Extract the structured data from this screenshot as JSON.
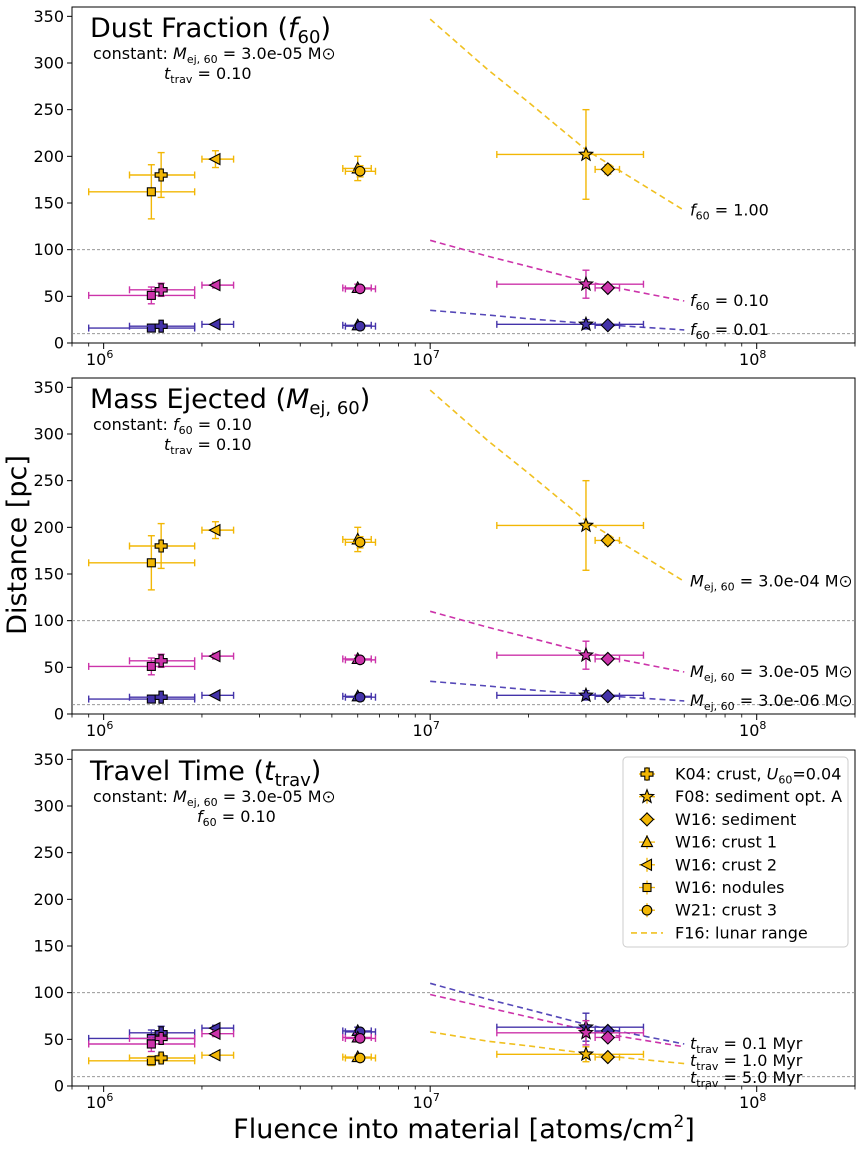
{
  "figure": {
    "ylabel": "Distance [pc]",
    "xlabel_main": "Fluence into material [atoms/cm",
    "xlabel_sup": "2",
    "xlabel_end": "]"
  },
  "colors": {
    "gold": "#f2b705",
    "gold_line": "#f0c020",
    "magenta": "#cc33aa",
    "purple": "#4433aa",
    "purple_line": "#5548b8",
    "guide": "#888888"
  },
  "shared_points": {
    "K04": {
      "x": 1500000.0,
      "xerr": [
        1200000.0,
        1900000.0
      ]
    },
    "F08": {
      "x": 30000000.0,
      "xerr": [
        16000000.0,
        45000000.0
      ]
    },
    "W16s": {
      "x": 35000000.0,
      "xerr": [
        32000000.0,
        38000000.0
      ]
    },
    "W16c1": {
      "x": 6000000.0,
      "xerr": [
        5400000.0,
        6600000.0
      ]
    },
    "W16c2": {
      "x": 2200000.0,
      "xerr": [
        2000000.0,
        2500000.0
      ]
    },
    "W16n": {
      "x": 1400000.0,
      "xerr": [
        900000.0,
        1900000.0
      ]
    },
    "W21": {
      "x": 6100000.0,
      "xerr": [
        5500000.0,
        6800000.0
      ]
    }
  },
  "legend": {
    "items": [
      {
        "marker": "plus",
        "label_main": "K04: crust, ",
        "label_it": "U",
        "label_sub": "60",
        "label_end": "=0.04"
      },
      {
        "marker": "star",
        "label_main": "F08: sediment opt. A"
      },
      {
        "marker": "diamond",
        "label_main": "W16: sediment"
      },
      {
        "marker": "triangle-up",
        "label_main": "W16: crust 1"
      },
      {
        "marker": "triangle-left",
        "label_main": "W16: crust 2"
      },
      {
        "marker": "square",
        "label_main": "W16: nodules"
      },
      {
        "marker": "circle",
        "label_main": "W21: crust 3"
      },
      {
        "marker": "dashed-line",
        "label_main": "F16: lunar range"
      }
    ]
  },
  "chart_data": [
    {
      "type": "scatter",
      "title_main": "Dust Fraction (",
      "title_it": "f",
      "title_sub": "60",
      "title_end": ")",
      "constants": [
        {
          "prefix": "constant: ",
          "sym": "M",
          "sub": "ej, 60",
          "rest": " =  3.0e-05 M",
          "sun": true
        },
        {
          "prefix": "",
          "sym": "t",
          "sub": "trav",
          "rest": " =  0.10",
          "sun": false
        }
      ],
      "xscale": "log",
      "xlim": [
        800000.0,
        200000000.0
      ],
      "ylim": [
        0,
        360
      ],
      "xticks": [
        "10^6",
        "10^7",
        "10^8"
      ],
      "yticks": [
        0,
        50,
        100,
        150,
        200,
        250,
        300,
        350
      ],
      "hlines": [
        100,
        10
      ],
      "series": [
        {
          "color": "gold",
          "curve": [
            [
              10000000.0,
              347
            ],
            [
              15000000.0,
              293
            ],
            [
              20000000.0,
              258
            ],
            [
              30000000.0,
              207
            ],
            [
              40000000.0,
              180
            ],
            [
              60000000.0,
              142
            ]
          ],
          "label": {
            "sym": "f",
            "sub": "60",
            "rest": " =  1.00"
          },
          "points": {
            "K04": [
              180,
              24
            ],
            "F08": [
              202,
              48
            ],
            "W16s": [
              186,
              5
            ],
            "W16c1": [
              187,
              13
            ],
            "W16c2": [
              197,
              9
            ],
            "W16n": [
              162,
              29
            ],
            "W21": [
              184,
              6
            ]
          }
        },
        {
          "color": "magenta",
          "curve": [
            [
              10000000.0,
              110
            ],
            [
              15000000.0,
              93
            ],
            [
              20000000.0,
              82
            ],
            [
              30000000.0,
              66
            ],
            [
              40000000.0,
              57
            ],
            [
              60000000.0,
              45
            ]
          ],
          "label": {
            "sym": "f",
            "sub": "60",
            "rest": " =  0.10"
          },
          "points": {
            "K04": [
              57,
              7
            ],
            "F08": [
              63,
              15
            ],
            "W16s": [
              59,
              2
            ],
            "W16c1": [
              59,
              4
            ],
            "W16c2": [
              62,
              3
            ],
            "W16n": [
              51,
              9
            ],
            "W21": [
              58,
              2
            ]
          }
        },
        {
          "color": "purple",
          "curve": [
            [
              10000000.0,
              35
            ],
            [
              15000000.0,
              30
            ],
            [
              20000000.0,
              26
            ],
            [
              30000000.0,
              21
            ],
            [
              40000000.0,
              18
            ],
            [
              60000000.0,
              14
            ]
          ],
          "label": {
            "sym": "f",
            "sub": "60",
            "rest": " =  0.01"
          },
          "points": {
            "K04": [
              18,
              2
            ],
            "F08": [
              20,
              5
            ],
            "W16s": [
              19,
              1
            ],
            "W16c1": [
              19,
              1
            ],
            "W16c2": [
              20,
              1
            ],
            "W16n": [
              16,
              3
            ],
            "W21": [
              18,
              1
            ]
          }
        }
      ]
    },
    {
      "type": "scatter",
      "title_main": "Mass Ejected (",
      "title_it": "M",
      "title_sub": "ej, 60",
      "title_end": ")",
      "constants": [
        {
          "prefix": "constant: ",
          "sym": "f",
          "sub": "60",
          "rest": " =  0.10",
          "sun": false
        },
        {
          "prefix": "",
          "sym": "t",
          "sub": "trav",
          "rest": " =  0.10",
          "sun": false
        }
      ],
      "xscale": "log",
      "xlim": [
        800000.0,
        200000000.0
      ],
      "ylim": [
        0,
        360
      ],
      "xticks": [
        "10^6",
        "10^7",
        "10^8"
      ],
      "yticks": [
        0,
        50,
        100,
        150,
        200,
        250,
        300,
        350
      ],
      "hlines": [
        100,
        10
      ],
      "series": [
        {
          "color": "gold",
          "curve": [
            [
              10000000.0,
              347
            ],
            [
              15000000.0,
              293
            ],
            [
              20000000.0,
              258
            ],
            [
              30000000.0,
              207
            ],
            [
              40000000.0,
              180
            ],
            [
              60000000.0,
              142
            ]
          ],
          "label": {
            "sym": "M",
            "sub": "ej, 60",
            "rest": " =  3.0e-04 M",
            "sun": true
          },
          "points": {
            "K04": [
              180,
              24
            ],
            "F08": [
              202,
              48
            ],
            "W16s": [
              186,
              5
            ],
            "W16c1": [
              187,
              13
            ],
            "W16c2": [
              197,
              9
            ],
            "W16n": [
              162,
              29
            ],
            "W21": [
              184,
              6
            ]
          }
        },
        {
          "color": "magenta",
          "curve": [
            [
              10000000.0,
              110
            ],
            [
              15000000.0,
              93
            ],
            [
              20000000.0,
              82
            ],
            [
              30000000.0,
              66
            ],
            [
              40000000.0,
              57
            ],
            [
              60000000.0,
              45
            ]
          ],
          "label": {
            "sym": "M",
            "sub": "ej, 60",
            "rest": " =  3.0e-05 M",
            "sun": true
          },
          "points": {
            "K04": [
              57,
              7
            ],
            "F08": [
              63,
              15
            ],
            "W16s": [
              59,
              2
            ],
            "W16c1": [
              59,
              4
            ],
            "W16c2": [
              62,
              3
            ],
            "W16n": [
              51,
              9
            ],
            "W21": [
              58,
              2
            ]
          }
        },
        {
          "color": "purple",
          "curve": [
            [
              10000000.0,
              35
            ],
            [
              15000000.0,
              30
            ],
            [
              20000000.0,
              26
            ],
            [
              30000000.0,
              21
            ],
            [
              40000000.0,
              18
            ],
            [
              60000000.0,
              14
            ]
          ],
          "label": {
            "sym": "M",
            "sub": "ej, 60",
            "rest": " =  3.0e-06 M",
            "sun": true
          },
          "points": {
            "K04": [
              18,
              2
            ],
            "F08": [
              20,
              5
            ],
            "W16s": [
              19,
              1
            ],
            "W16c1": [
              19,
              1
            ],
            "W16c2": [
              20,
              1
            ],
            "W16n": [
              16,
              3
            ],
            "W21": [
              18,
              1
            ]
          }
        }
      ]
    },
    {
      "type": "scatter",
      "title_main": "Travel Time (",
      "title_it": "t",
      "title_sub": "trav",
      "title_end": ")",
      "constants": [
        {
          "prefix": "constant: ",
          "sym": "M",
          "sub": "ej, 60",
          "rest": " =  3.0e-05 M",
          "sun": true
        },
        {
          "prefix": "",
          "sym": "f",
          "sub": "60",
          "rest": " =  0.10",
          "sun": false
        }
      ],
      "xscale": "log",
      "xlim": [
        800000.0,
        200000000.0
      ],
      "ylim": [
        0,
        360
      ],
      "xticks": [
        "10^6",
        "10^7",
        "10^8"
      ],
      "yticks": [
        0,
        50,
        100,
        150,
        200,
        250,
        300,
        350
      ],
      "hlines": [
        100,
        10
      ],
      "legend": "top-right",
      "series": [
        {
          "color": "purple",
          "curve": [
            [
              10000000.0,
              110
            ],
            [
              15000000.0,
              93
            ],
            [
              20000000.0,
              82
            ],
            [
              30000000.0,
              66
            ],
            [
              40000000.0,
              57
            ],
            [
              60000000.0,
              45
            ]
          ],
          "label": {
            "sym": "t",
            "sub": "trav",
            "rest": " =  0.1 Myr"
          },
          "points": {
            "K04": [
              57,
              7
            ],
            "F08": [
              63,
              15
            ],
            "W16s": [
              59,
              2
            ],
            "W16c1": [
              59,
              4
            ],
            "W16c2": [
              62,
              3
            ],
            "W16n": [
              51,
              9
            ],
            "W21": [
              58,
              2
            ]
          }
        },
        {
          "color": "magenta",
          "curve": [
            [
              10000000.0,
              98
            ],
            [
              15000000.0,
              84
            ],
            [
              20000000.0,
              74
            ],
            [
              30000000.0,
              60
            ],
            [
              40000000.0,
              52
            ],
            [
              60000000.0,
              42
            ]
          ],
          "label": {
            "sym": "t",
            "sub": "trav",
            "rest": " =  1.0 Myr"
          },
          "points": {
            "K04": [
              51,
              6
            ],
            "F08": [
              57,
              13
            ],
            "W16s": [
              52,
              2
            ],
            "W16c1": [
              52,
              4
            ],
            "W16c2": [
              56,
              3
            ],
            "W16n": [
              45,
              8
            ],
            "W21": [
              51,
              2
            ]
          }
        },
        {
          "color": "gold",
          "curve": [
            [
              10000000.0,
              58
            ],
            [
              15000000.0,
              48
            ],
            [
              20000000.0,
              43
            ],
            [
              30000000.0,
              35
            ],
            [
              40000000.0,
              30
            ],
            [
              60000000.0,
              24
            ]
          ],
          "label": {
            "sym": "t",
            "sub": "trav",
            "rest": " =  5.0 Myr"
          },
          "points": {
            "K04": [
              30,
              4
            ],
            "F08": [
              34,
              8
            ],
            "W16s": [
              31,
              1
            ],
            "W16c1": [
              31,
              2
            ],
            "W16c2": [
              33,
              2
            ],
            "W16n": [
              27,
              5
            ],
            "W21": [
              30,
              1
            ]
          }
        }
      ]
    }
  ]
}
